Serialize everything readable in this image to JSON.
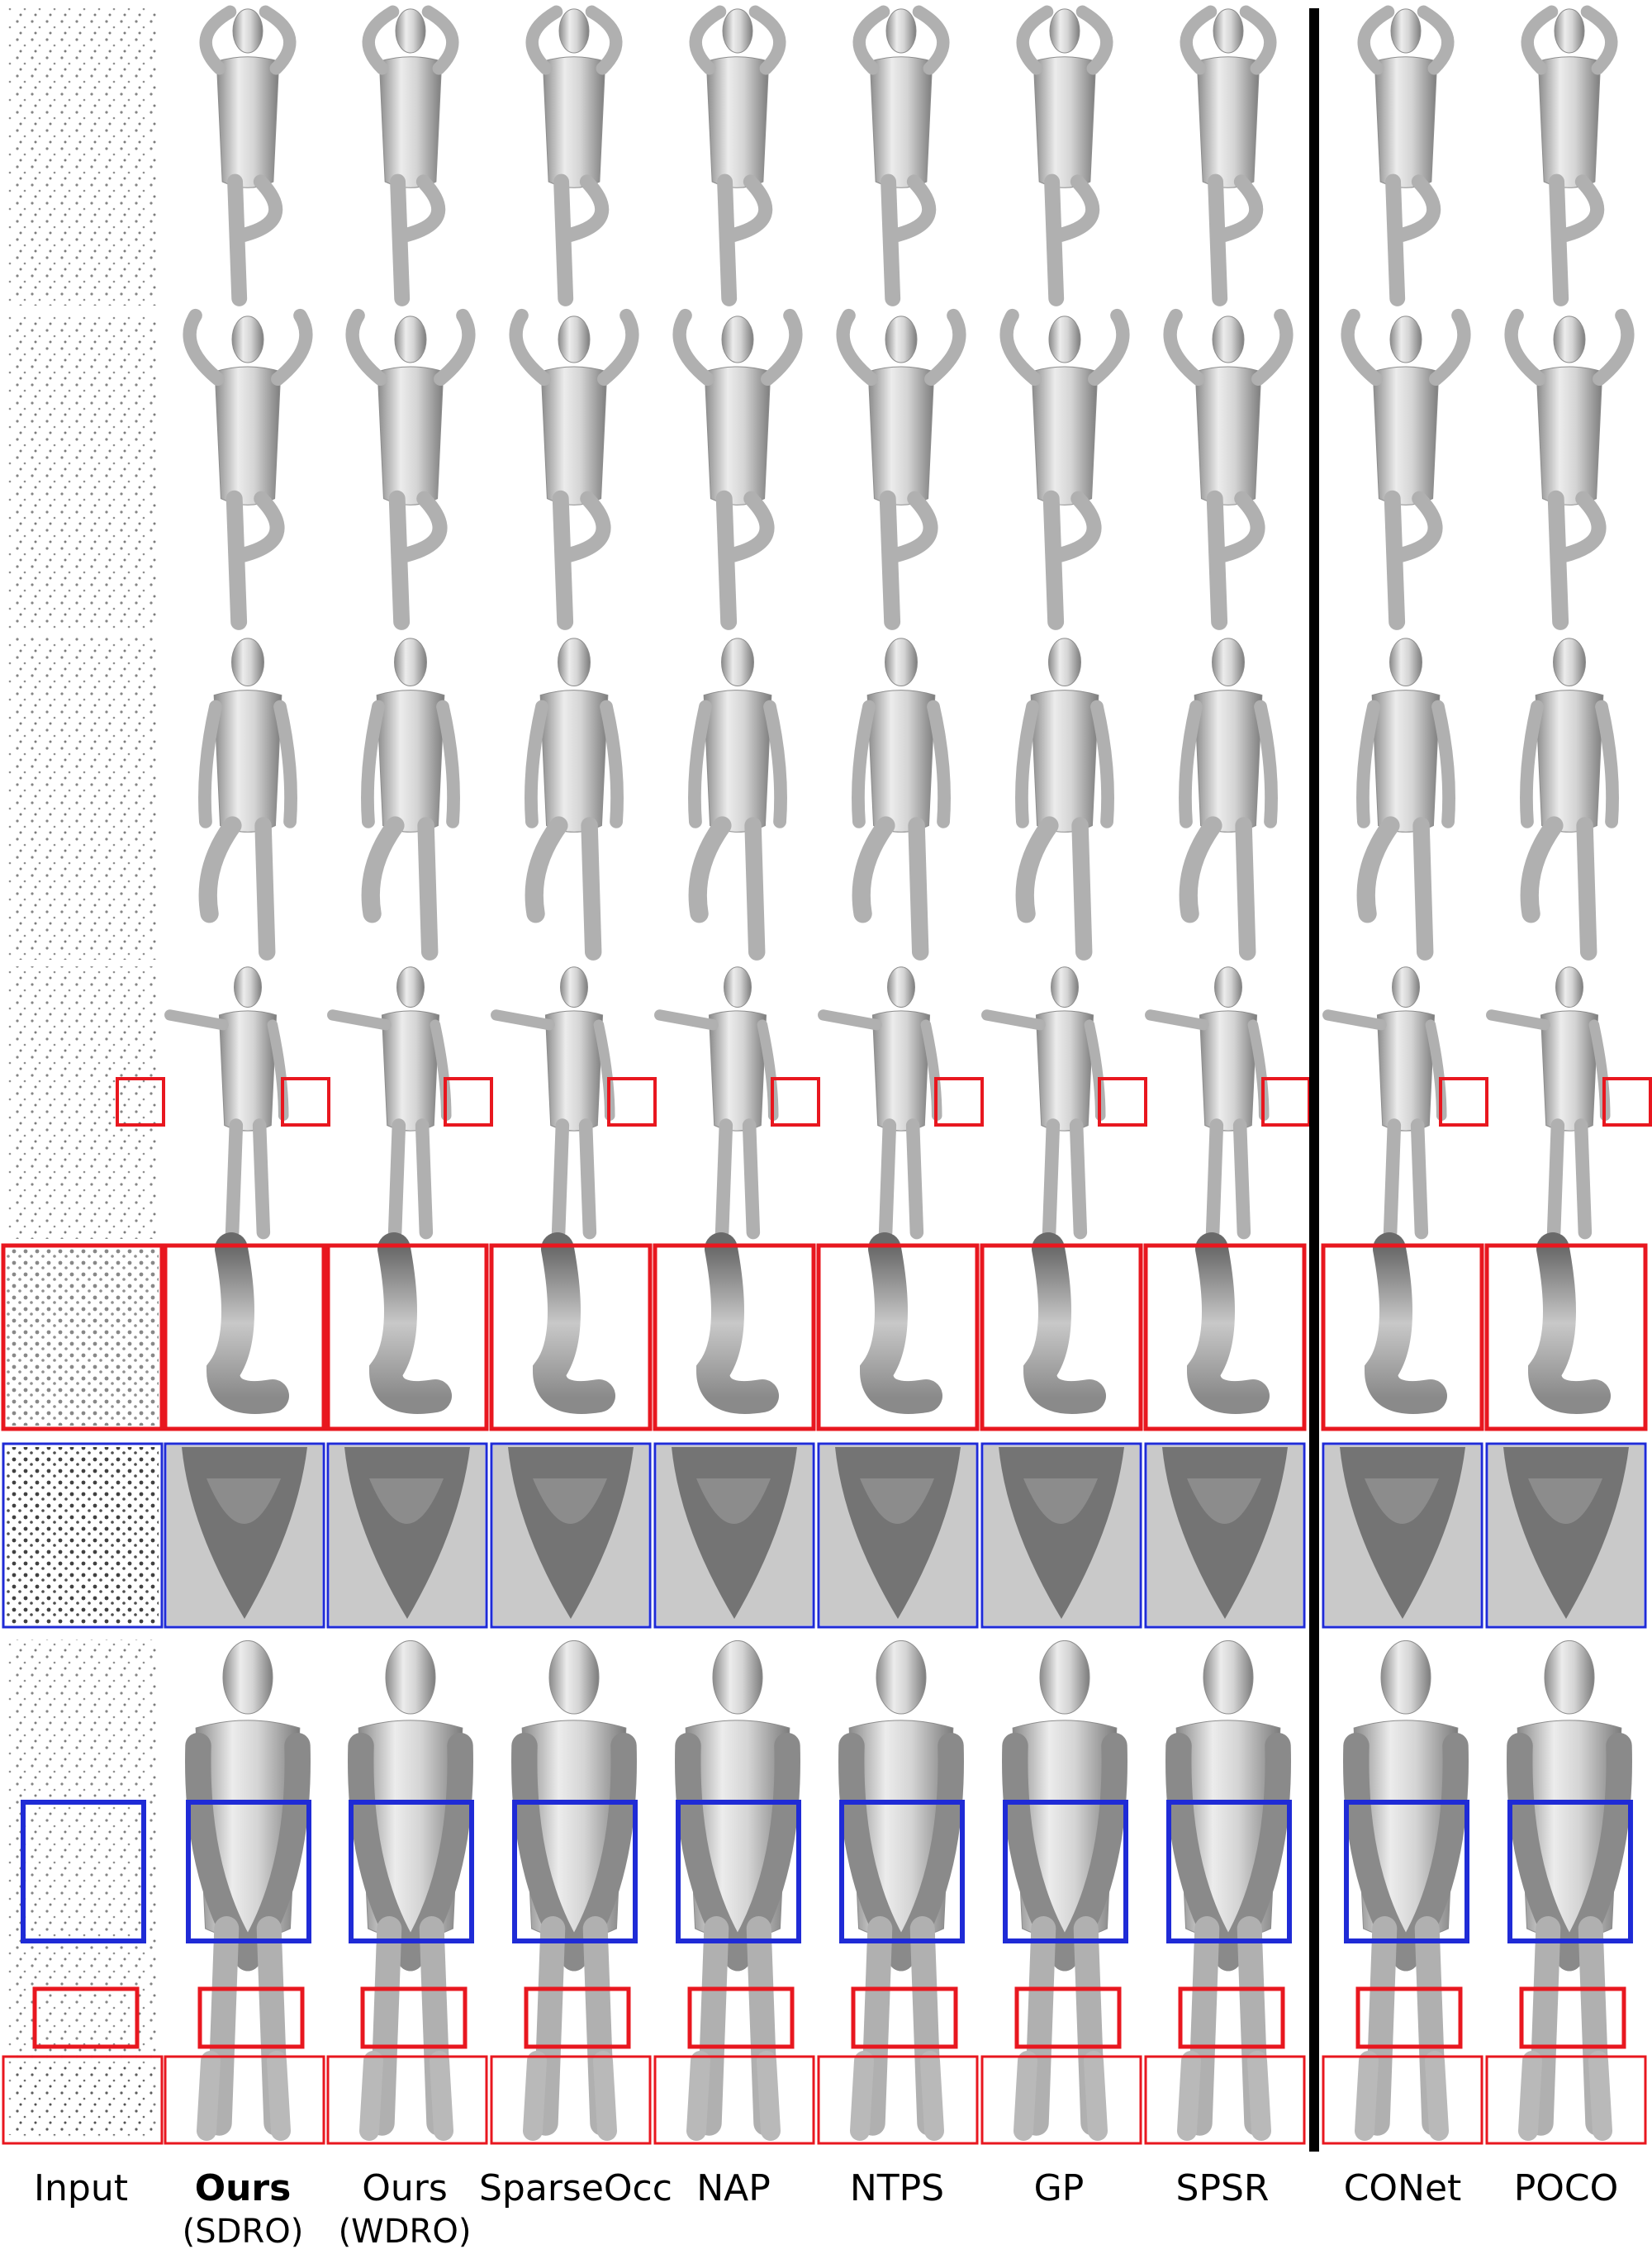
{
  "figure": {
    "columns": [
      {
        "id": "input",
        "label": "Input",
        "sublabel": "",
        "bold": false
      },
      {
        "id": "ours_sdro",
        "label": "Ours",
        "sublabel": "(SDRO)",
        "bold": true
      },
      {
        "id": "ours_wdro",
        "label": "Ours",
        "sublabel": "(WDRO)",
        "bold": false
      },
      {
        "id": "sparseocc",
        "label": "SparseOcc",
        "sublabel": "",
        "bold": false
      },
      {
        "id": "nap",
        "label": "NAP",
        "sublabel": "",
        "bold": false
      },
      {
        "id": "ntps",
        "label": "NTPS",
        "sublabel": "",
        "bold": false
      },
      {
        "id": "gp",
        "label": "GP",
        "sublabel": "",
        "bold": false
      },
      {
        "id": "spsr",
        "label": "SPSR",
        "sublabel": "",
        "bold": false
      },
      {
        "id": "conet",
        "label": "CONet",
        "sublabel": "",
        "bold": false
      },
      {
        "id": "poco",
        "label": "POCO",
        "sublabel": "",
        "bold": false
      }
    ],
    "colors": {
      "zoom_red": "#e8171f",
      "zoom_blue": "#1f2bd6",
      "divider": "#000000",
      "mesh_light": "#f2f2f2",
      "mesh_dark": "#7a7a7a"
    }
  }
}
